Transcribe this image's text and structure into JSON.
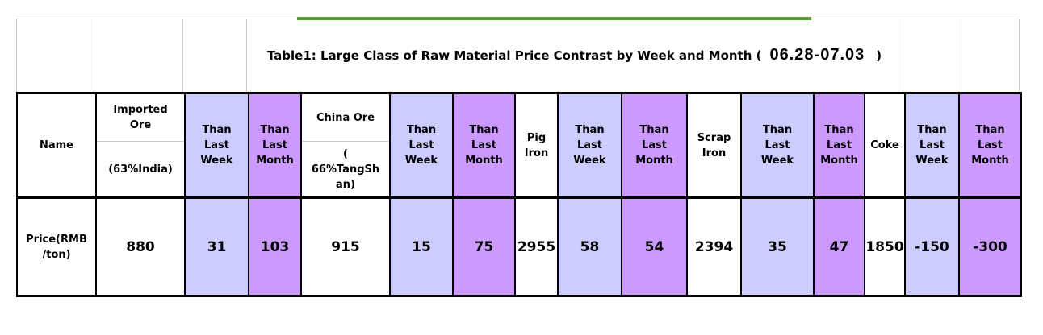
{
  "colors": {
    "lavender_week_fill": "#CCCCFF",
    "purple_month_fill": "#CC99FF",
    "green_line": "#55A32F",
    "gridline_gray": "#CBC9C9",
    "table_border": "#000000"
  },
  "title": {
    "prefix": "Table1:  Large Class of Raw Material Price Contrast by Week and Month (",
    "date": "06.28-07.03",
    "suffix": ")"
  },
  "table": {
    "row_label_lines": [
      "Price(RMB",
      "/ton)"
    ],
    "columns": [
      {
        "header": [
          "Name"
        ],
        "value": ""
      },
      {
        "header": [
          "Imported",
          "Ore"
        ],
        "header_sub": [
          "(63%India)"
        ],
        "value": "880"
      },
      {
        "header": [
          "Than",
          "Last",
          "Week"
        ],
        "value": "31"
      },
      {
        "header": [
          "Than",
          "Last",
          "Month"
        ],
        "value": "103"
      },
      {
        "header": [
          "China Ore"
        ],
        "header_sub": [
          "(",
          "66%TangSh",
          "an)"
        ],
        "value": "915"
      },
      {
        "header": [
          "Than",
          "Last",
          "Week"
        ],
        "value": "15"
      },
      {
        "header": [
          "Than",
          "Last",
          "Month"
        ],
        "value": "75"
      },
      {
        "header": [
          "Pig",
          "Iron"
        ],
        "value": "2955"
      },
      {
        "header": [
          "Than",
          "Last",
          "Week"
        ],
        "value": "58"
      },
      {
        "header": [
          "Than",
          "Last",
          "Month"
        ],
        "value": "54"
      },
      {
        "header": [
          "Scrap",
          "Iron"
        ],
        "value": "2394"
      },
      {
        "header": [
          "Than",
          "Last",
          "Week"
        ],
        "value": "35"
      },
      {
        "header": [
          "Than",
          "Last",
          "Month"
        ],
        "value": "47"
      },
      {
        "header": [
          "Coke"
        ],
        "value": "1850"
      },
      {
        "header": [
          "Than",
          "Last",
          "Week"
        ],
        "value": "-150"
      },
      {
        "header": [
          "Than",
          "Last",
          "Month"
        ],
        "value": "-300"
      }
    ]
  }
}
